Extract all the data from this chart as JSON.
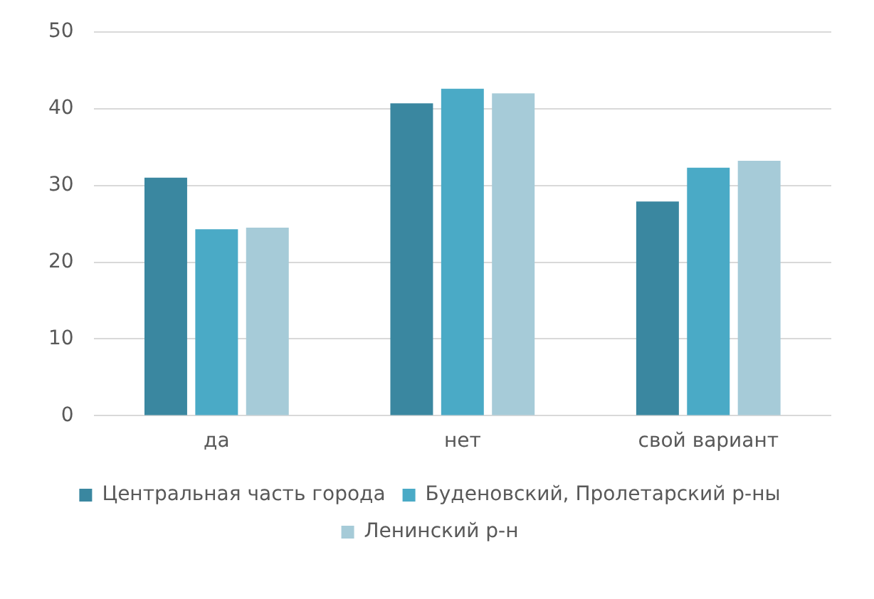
{
  "chart_data": {
    "type": "bar",
    "categories": [
      "да",
      "нет",
      "свой вариант"
    ],
    "series": [
      {
        "name": "Центральная часть города",
        "color": "#3a87a0",
        "values": [
          31.0,
          40.7,
          27.9
        ]
      },
      {
        "name": "Буденовский, Пролетарский р-ны",
        "color": "#4aaac6",
        "values": [
          24.3,
          42.6,
          32.3
        ]
      },
      {
        "name": "Ленинский р-н",
        "color": "#a6cbd8",
        "values": [
          24.5,
          42.0,
          33.2
        ]
      }
    ],
    "ylim": [
      0,
      50
    ],
    "yticks": [
      0,
      10,
      20,
      30,
      40,
      50
    ],
    "grid": "y",
    "legend": "bottom"
  }
}
